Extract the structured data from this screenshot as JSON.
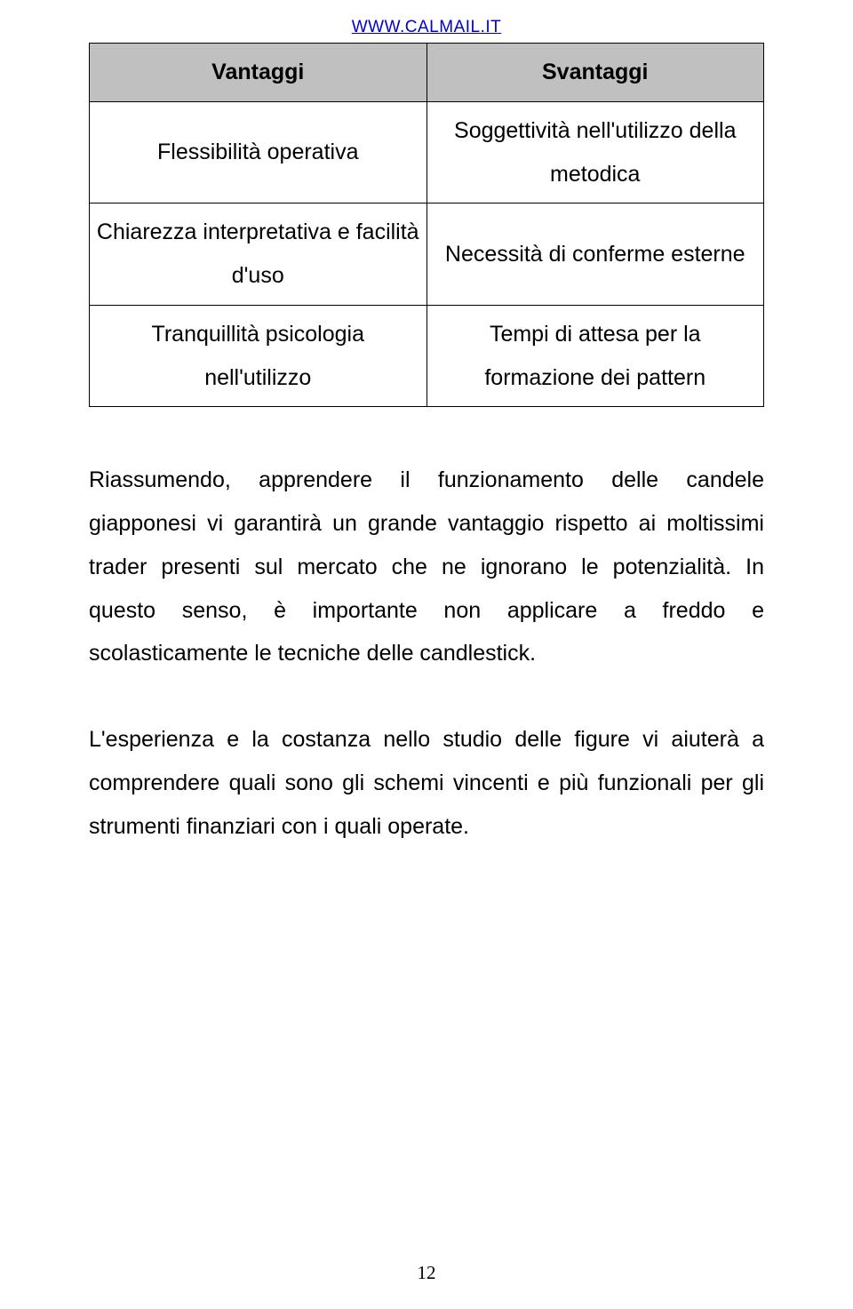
{
  "header_url": "WWW.CALMAIL.IT",
  "table": {
    "header_left": "Vantaggi",
    "header_right": "Svantaggi",
    "rows": [
      {
        "left": "Flessibilità operativa",
        "right": "Soggettività nell'utilizzo della metodica"
      },
      {
        "left": "Chiarezza interpretativa e facilità d'uso",
        "right": "Necessità di conferme esterne"
      },
      {
        "left": "Tranquillità psicologia nell'utilizzo",
        "right": "Tempi di attesa per la formazione dei pattern"
      }
    ]
  },
  "paragraph1": "Riassumendo, apprendere il funzionamento delle candele giapponesi vi garantirà un grande vantaggio rispetto ai moltissimi trader presenti sul mercato che ne ignorano le potenzialità. In questo senso, è importante non applicare a freddo e scolasticamente le tecniche delle candlestick.",
  "paragraph2": "L'esperienza e la costanza nello studio delle figure vi aiuterà a comprendere quali sono gli schemi vincenti e più funzionali per gli strumenti finanziari con i quali operate.",
  "page_number": "12"
}
